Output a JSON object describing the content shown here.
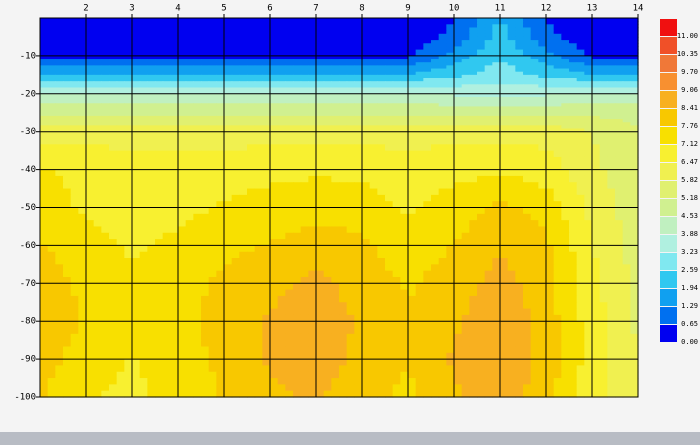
{
  "chart_data": {
    "type": "contour",
    "x": [
      1,
      2,
      3,
      4,
      5,
      6,
      7,
      8,
      9,
      10,
      11,
      12,
      13,
      14
    ],
    "y": [
      0,
      -5,
      -10,
      -15,
      -20,
      -25,
      -30,
      -40,
      -50,
      -60,
      -70,
      -80,
      -90,
      -100
    ],
    "z": [
      [
        0.3,
        0.3,
        0.3,
        0.3,
        0.3,
        0.3,
        0.3,
        0.3,
        0.3,
        0.6,
        2.0,
        0.6,
        0.3,
        0.3
      ],
      [
        0.3,
        0.3,
        0.3,
        0.3,
        0.3,
        0.3,
        0.3,
        0.3,
        0.3,
        0.8,
        2.2,
        0.8,
        0.3,
        0.3
      ],
      [
        0.5,
        0.5,
        0.5,
        0.5,
        0.5,
        0.5,
        0.5,
        0.5,
        0.5,
        1.5,
        2.5,
        1.5,
        0.5,
        0.5
      ],
      [
        2.0,
        2.0,
        2.0,
        2.0,
        2.0,
        2.0,
        2.0,
        2.0,
        2.0,
        2.4,
        3.0,
        2.4,
        2.0,
        2.0
      ],
      [
        4.0,
        4.0,
        4.0,
        4.0,
        4.0,
        4.0,
        4.0,
        4.0,
        4.0,
        3.8,
        3.5,
        3.8,
        4.0,
        4.0
      ],
      [
        5.0,
        5.0,
        5.0,
        5.0,
        5.0,
        5.0,
        5.0,
        5.0,
        5.0,
        5.0,
        5.0,
        5.0,
        5.0,
        5.0
      ],
      [
        6.2,
        6.2,
        6.2,
        6.2,
        6.2,
        6.2,
        6.2,
        6.2,
        6.2,
        6.2,
        6.2,
        6.2,
        5.8,
        5.2
      ],
      [
        7.2,
        6.9,
        6.8,
        6.8,
        6.8,
        6.9,
        7.0,
        6.9,
        6.8,
        6.9,
        7.0,
        6.8,
        6.0,
        5.3
      ],
      [
        7.5,
        7.0,
        6.8,
        6.9,
        7.2,
        7.4,
        7.6,
        7.5,
        7.0,
        7.4,
        7.9,
        7.5,
        6.3,
        5.4
      ],
      [
        7.8,
        7.4,
        7.0,
        7.3,
        7.6,
        7.8,
        8.0,
        7.9,
        7.4,
        7.8,
        8.3,
        7.9,
        6.5,
        5.5
      ],
      [
        8.1,
        7.6,
        7.3,
        7.5,
        7.9,
        8.2,
        8.6,
        8.1,
        7.7,
        8.0,
        8.7,
        8.0,
        6.7,
        5.6
      ],
      [
        8.2,
        7.7,
        7.4,
        7.6,
        8.0,
        8.5,
        8.9,
        8.3,
        7.8,
        8.3,
        9.0,
        8.1,
        6.8,
        5.7
      ],
      [
        8.0,
        7.5,
        7.1,
        7.5,
        7.9,
        8.5,
        8.8,
        8.2,
        7.8,
        8.5,
        9.0,
        8.2,
        6.8,
        5.8
      ],
      [
        7.8,
        7.2,
        6.9,
        7.4,
        7.8,
        8.3,
        8.5,
        8.0,
        7.6,
        8.3,
        8.8,
        8.0,
        6.7,
        5.8
      ]
    ],
    "xlim": [
      1,
      14
    ],
    "ylim": [
      -100,
      0
    ],
    "xticks": [
      2,
      3,
      4,
      5,
      6,
      7,
      8,
      9,
      10,
      11,
      12,
      13,
      14
    ],
    "yticks": [
      -10,
      -20,
      -30,
      -40,
      -50,
      -60,
      -70,
      -80,
      -90,
      -100
    ],
    "grid": true,
    "levels": [
      {
        "value": 0,
        "label": "0.00"
      },
      {
        "value": 0.65,
        "label": "0.65"
      },
      {
        "value": 1.29,
        "label": "1.29"
      },
      {
        "value": 1.94,
        "label": "1.94"
      },
      {
        "value": 2.59,
        "label": "2.59"
      },
      {
        "value": 3.23,
        "label": "3.23"
      },
      {
        "value": 3.88,
        "label": "3.88"
      },
      {
        "value": 4.53,
        "label": "4.53"
      },
      {
        "value": 5.18,
        "label": "5.18"
      },
      {
        "value": 5.82,
        "label": "5.82"
      },
      {
        "value": 6.47,
        "label": "6.47"
      },
      {
        "value": 7.12,
        "label": "7.12"
      },
      {
        "value": 7.76,
        "label": "7.76"
      },
      {
        "value": 8.41,
        "label": "8.41"
      },
      {
        "value": 9.06,
        "label": "9.06"
      },
      {
        "value": 9.7,
        "label": "9.70"
      },
      {
        "value": 10.35,
        "label": "10.35"
      },
      {
        "value": 11,
        "label": "11.00"
      }
    ],
    "level_colors": [
      "#0000f0",
      "#0070f0",
      "#10a0f0",
      "#30c8f0",
      "#80e8f0",
      "#b0f0e0",
      "#c0f0c0",
      "#d0f090",
      "#e0f070",
      "#f0f050",
      "#f8f030",
      "#f8e000",
      "#f8c800",
      "#f8b020",
      "#f89030",
      "#f07838",
      "#f05028",
      "#f01010"
    ]
  }
}
